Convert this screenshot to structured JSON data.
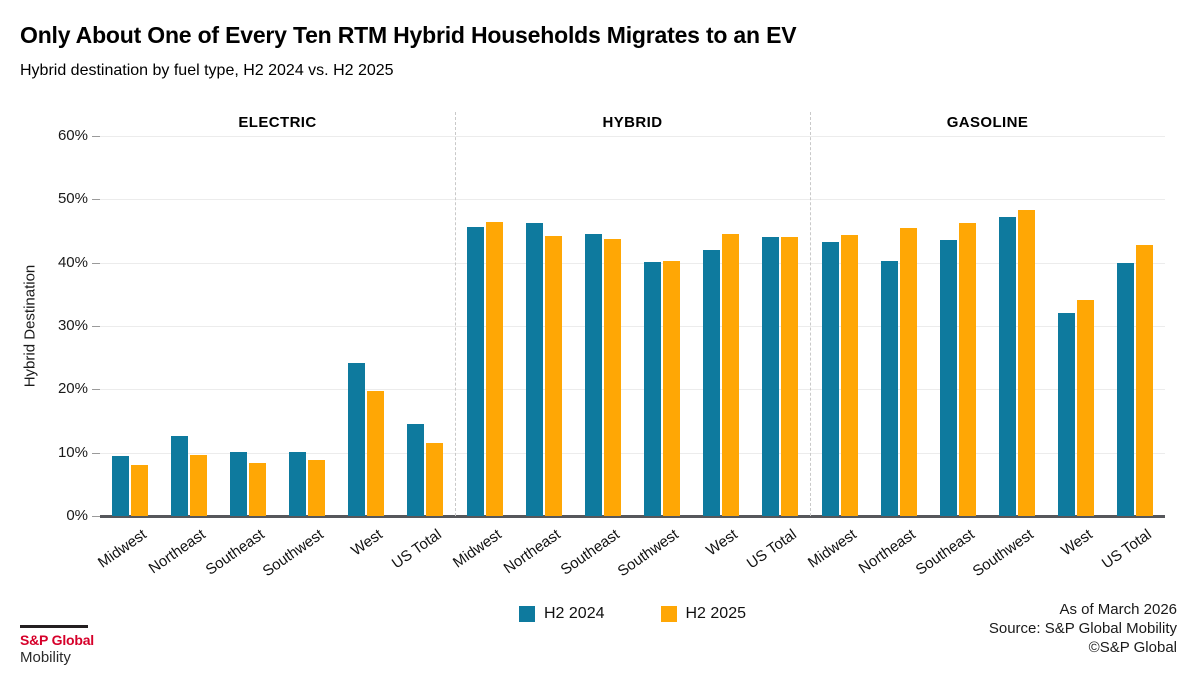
{
  "header": {
    "title": "Only About One of Every Ten RTM Hybrid Households Migrates to an EV",
    "subtitle": "Hybrid destination by fuel type, H2 2024 vs. H2 2025"
  },
  "chart_data": {
    "type": "bar",
    "ylabel": "Hybrid Destination",
    "ylim": [
      0,
      60
    ],
    "ytick_labels": [
      "0%",
      "10%",
      "20%",
      "30%",
      "40%",
      "50%",
      "60%"
    ],
    "grid": true,
    "legend_position": "bottom-center",
    "categories": [
      "Midwest",
      "Northeast",
      "Southeast",
      "Southwest",
      "West",
      "US Total"
    ],
    "series_colors": {
      "H2 2024": "#0e7a9e",
      "H2 2025": "#ffa705"
    },
    "legend": [
      "H2 2024",
      "H2 2025"
    ],
    "panels": [
      {
        "label": "ELECTRIC",
        "series": [
          {
            "name": "H2 2024",
            "values": [
              9.5,
              12.7,
              10.1,
              10.1,
              24.1,
              14.5
            ]
          },
          {
            "name": "H2 2025",
            "values": [
              8.0,
              9.7,
              8.4,
              8.8,
              19.7,
              11.5
            ]
          }
        ]
      },
      {
        "label": "HYBRID",
        "series": [
          {
            "name": "H2 2024",
            "values": [
              45.7,
              46.3,
              44.6,
              40.1,
              42.0,
              44.0
            ]
          },
          {
            "name": "H2 2025",
            "values": [
              46.4,
              44.2,
              43.8,
              40.3,
              44.5,
              44.1
            ]
          }
        ]
      },
      {
        "label": "GASOLINE",
        "series": [
          {
            "name": "H2 2024",
            "values": [
              43.3,
              40.2,
              43.6,
              47.2,
              32.0,
              40.0
            ]
          },
          {
            "name": "H2 2025",
            "values": [
              44.4,
              45.5,
              46.3,
              48.3,
              34.1,
              42.8
            ]
          }
        ]
      }
    ]
  },
  "footer": {
    "as_of": "As of March 2026",
    "source": "Source: S&P Global Mobility",
    "copyright": "©S&P Global"
  },
  "logo": {
    "brand": "S&P Global",
    "division": "Mobility",
    "brand_color": "#d6002a"
  }
}
